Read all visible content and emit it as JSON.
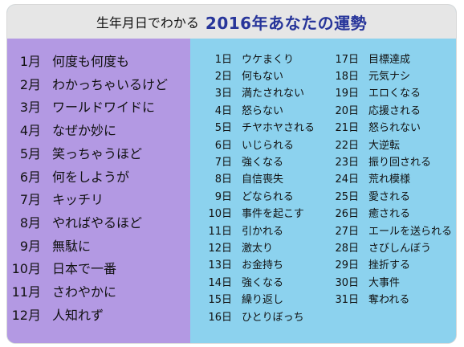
{
  "header": {
    "subtitle": "生年月日でわかる",
    "title": "2016年あなたの運勢"
  },
  "months": [
    {
      "num": "1月",
      "text": "何度も何度も"
    },
    {
      "num": "2月",
      "text": "わかっちゃいるけど"
    },
    {
      "num": "3月",
      "text": "ワールドワイドに"
    },
    {
      "num": "4月",
      "text": "なぜか妙に"
    },
    {
      "num": "5月",
      "text": "笑っちゃうほど"
    },
    {
      "num": "6月",
      "text": "何をしようが"
    },
    {
      "num": "7月",
      "text": "キッチリ"
    },
    {
      "num": "8月",
      "text": "やればやるほど"
    },
    {
      "num": "9月",
      "text": "無駄に"
    },
    {
      "num": "10月",
      "text": "日本で一番"
    },
    {
      "num": "11月",
      "text": "さわやかに"
    },
    {
      "num": "12月",
      "text": "人知れず"
    }
  ],
  "days_col1": [
    {
      "num": "1日",
      "text": "ウケまくり"
    },
    {
      "num": "2日",
      "text": "何もない"
    },
    {
      "num": "3日",
      "text": "満たされない"
    },
    {
      "num": "4日",
      "text": "怒らない"
    },
    {
      "num": "5日",
      "text": "チヤホヤされる"
    },
    {
      "num": "6日",
      "text": "いじられる"
    },
    {
      "num": "7日",
      "text": "強くなる"
    },
    {
      "num": "8日",
      "text": "自信喪失"
    },
    {
      "num": "9日",
      "text": "どなられる"
    },
    {
      "num": "10日",
      "text": "事件を起こす"
    },
    {
      "num": "11日",
      "text": "引かれる"
    },
    {
      "num": "12日",
      "text": "激太り"
    },
    {
      "num": "13日",
      "text": "お金持ち"
    },
    {
      "num": "14日",
      "text": "強くなる"
    },
    {
      "num": "15日",
      "text": "繰り返し"
    },
    {
      "num": "16日",
      "text": "ひとりぼっち"
    }
  ],
  "days_col2": [
    {
      "num": "17日",
      "text": "目標達成"
    },
    {
      "num": "18日",
      "text": "元気ナシ"
    },
    {
      "num": "19日",
      "text": "エロくなる"
    },
    {
      "num": "20日",
      "text": "応援される"
    },
    {
      "num": "21日",
      "text": "怒られない"
    },
    {
      "num": "22日",
      "text": "大逆転"
    },
    {
      "num": "23日",
      "text": "振り回される"
    },
    {
      "num": "24日",
      "text": "荒れ模様"
    },
    {
      "num": "25日",
      "text": "愛される"
    },
    {
      "num": "26日",
      "text": "癒される"
    },
    {
      "num": "27日",
      "text": "エールを送られる"
    },
    {
      "num": "28日",
      "text": "さびしんぼう"
    },
    {
      "num": "29日",
      "text": "挫折する"
    },
    {
      "num": "30日",
      "text": "大事件"
    },
    {
      "num": "31日",
      "text": "奪われる"
    }
  ],
  "colors": {
    "left_bg": "#b399e3",
    "right_bg": "#8cd2ee",
    "header_bg": "#e6e6e6",
    "title": "#27359a"
  }
}
